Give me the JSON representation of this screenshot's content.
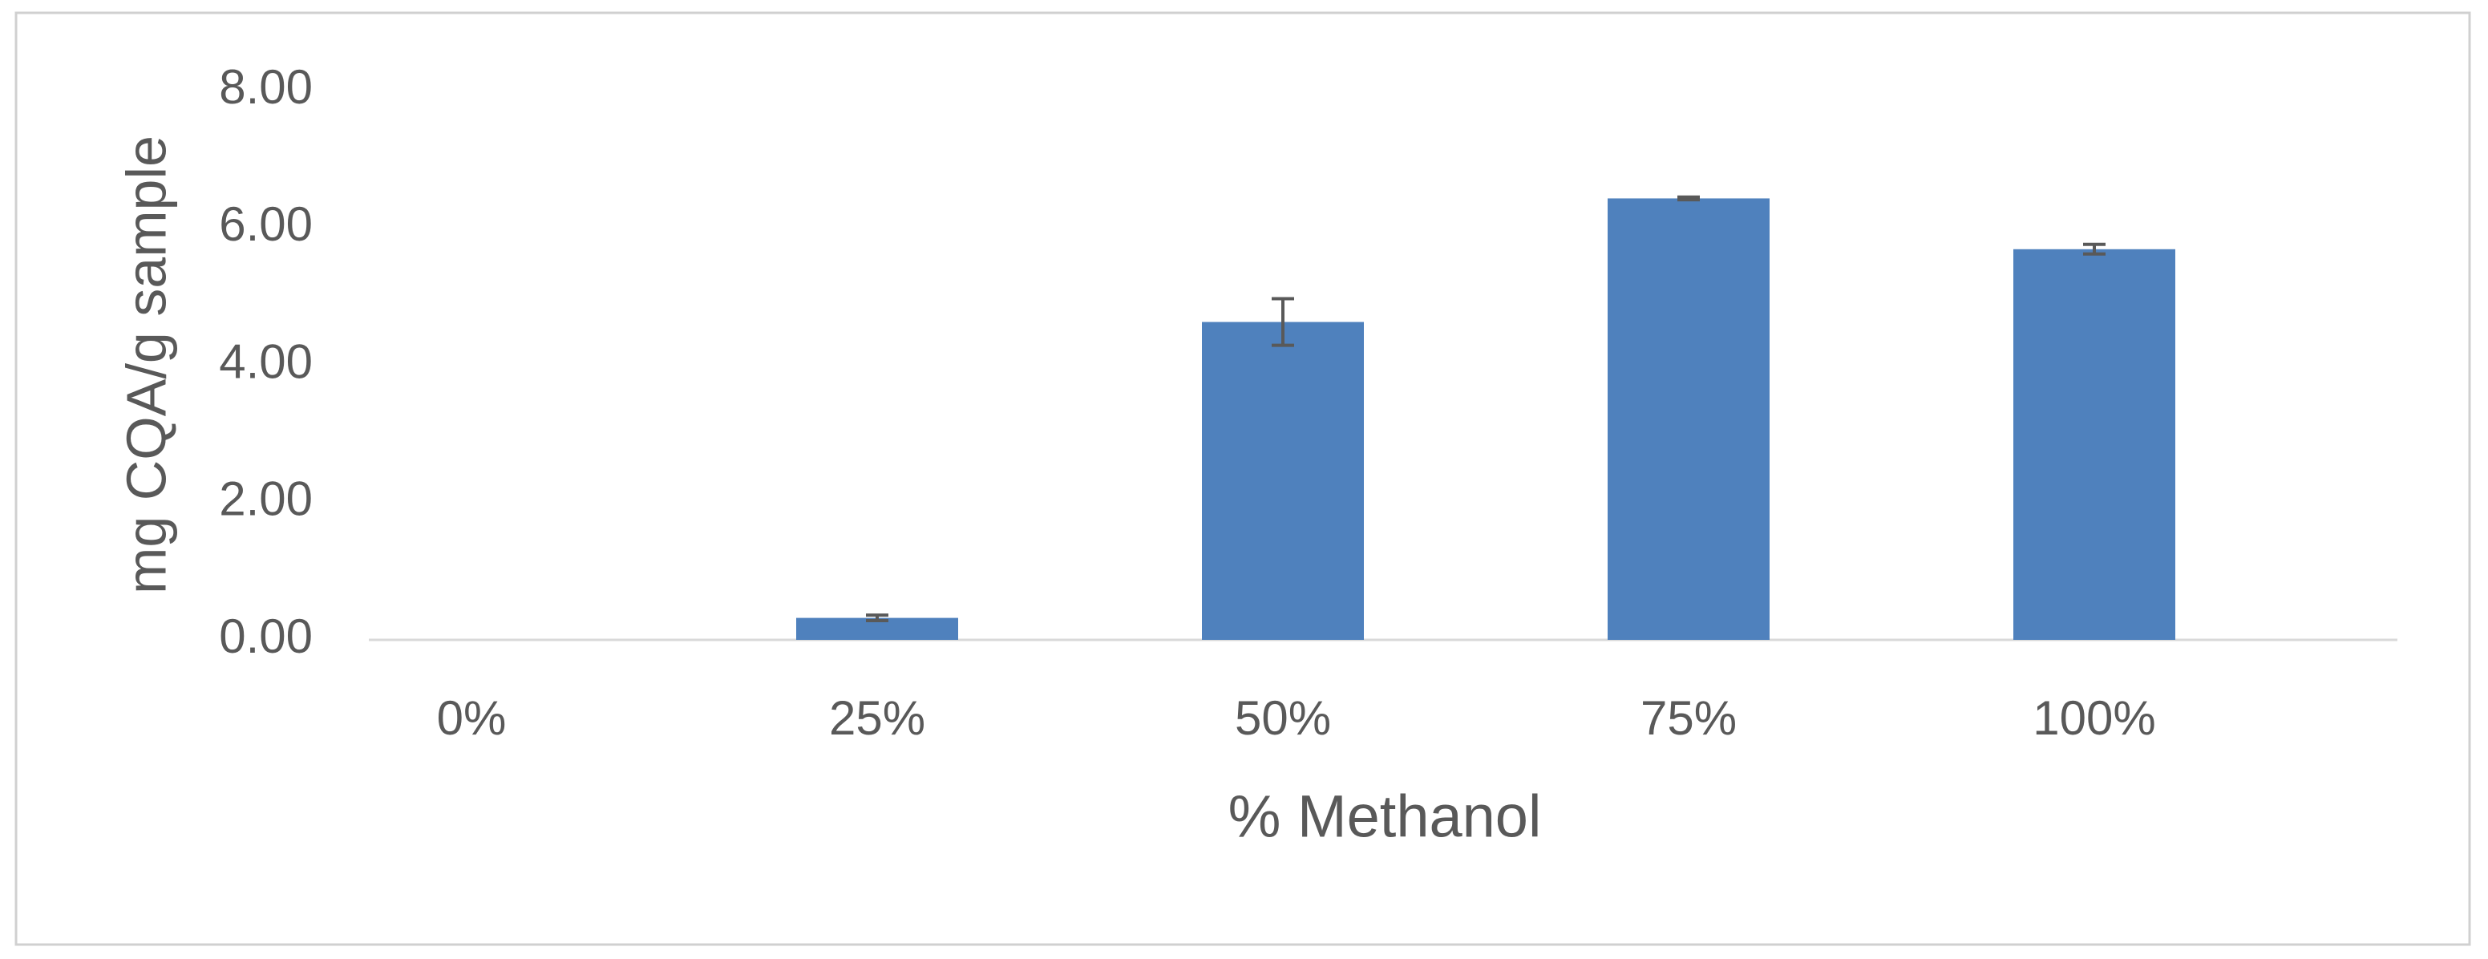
{
  "chart_data": {
    "type": "bar",
    "categories": [
      "0%",
      "25%",
      "50%",
      "75%",
      "100%"
    ],
    "values": [
      0,
      0.32,
      4.63,
      6.43,
      5.69
    ],
    "errors": [
      0,
      0.04,
      0.34,
      0.02,
      0.07
    ],
    "color": "#4f81bd",
    "x_label": "% Methanol",
    "y_label": "mg CQA/g sample",
    "ylim": [
      0,
      8
    ],
    "yticks": [
      {
        "value": 0,
        "label": "0.00"
      },
      {
        "value": 2,
        "label": "2.00"
      },
      {
        "value": 4,
        "label": "4.00"
      },
      {
        "value": 6,
        "label": "6.00"
      },
      {
        "value": 8,
        "label": "8.00"
      }
    ],
    "grid": false
  }
}
